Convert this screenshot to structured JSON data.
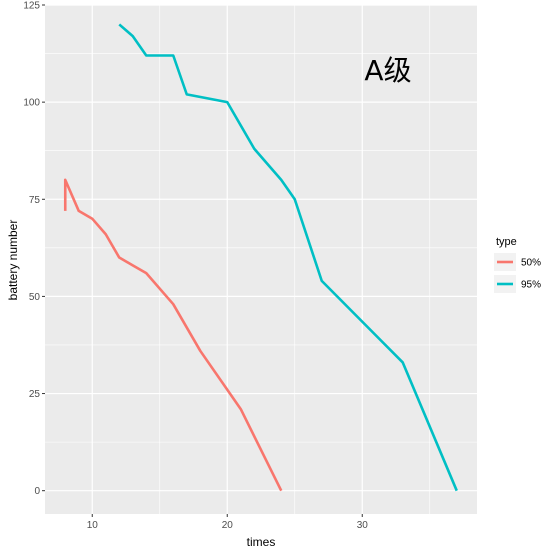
{
  "chart_data": {
    "type": "line",
    "xlabel": "times",
    "ylabel": "battery number",
    "xlim": [
      6.5,
      38.5
    ],
    "ylim": [
      -6,
      125
    ],
    "x_ticks": [
      10,
      20,
      30
    ],
    "y_ticks": [
      0,
      25,
      50,
      75,
      100,
      125
    ],
    "x_tick_labels": [
      "10",
      "20",
      "30"
    ],
    "y_tick_labels": [
      "0",
      "25",
      "50",
      "75",
      "100",
      "125"
    ],
    "annotation": "A级",
    "legend": {
      "title": "type",
      "placement": "right"
    },
    "grid": true,
    "series": [
      {
        "name": "50%",
        "color": "#F8766D",
        "x": [
          8,
          8,
          9,
          10,
          11,
          12,
          13,
          14,
          16,
          18,
          21,
          24
        ],
        "y": [
          72,
          80,
          72,
          70,
          66,
          60,
          58,
          56,
          48,
          36,
          21,
          0
        ]
      },
      {
        "name": "95%",
        "color": "#00BFC4",
        "x": [
          12,
          13,
          14,
          16,
          17,
          20,
          22,
          24,
          25,
          27,
          33,
          37
        ],
        "y": [
          120,
          117,
          112,
          112,
          102,
          100,
          88,
          80,
          75,
          54,
          33,
          0
        ]
      }
    ]
  }
}
